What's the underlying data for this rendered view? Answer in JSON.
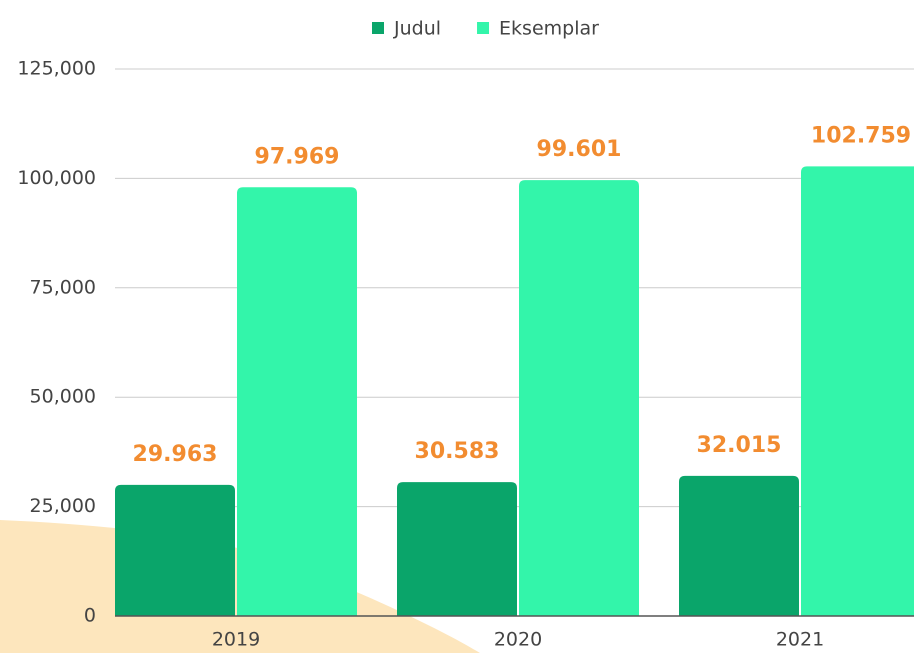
{
  "chart_data": {
    "type": "bar",
    "categories": [
      "2019",
      "2020",
      "2021"
    ],
    "series": [
      {
        "name": "Judul",
        "color": "#0aa56a",
        "values": [
          29963,
          30583,
          32015
        ],
        "value_labels": [
          "29.963",
          "30.583",
          "32.015"
        ]
      },
      {
        "name": "Eksemplar",
        "color": "#33f5aa",
        "values": [
          97969,
          99601,
          102759
        ],
        "value_labels": [
          "97.969",
          "99.601",
          "102.759"
        ]
      }
    ],
    "ylim": [
      0,
      125000
    ],
    "yticks": [
      0,
      {
        "value": 25000,
        "label": "25,000"
      },
      {
        "value": 50000,
        "label": "50,000"
      },
      {
        "value": 75000,
        "label": "75,000"
      },
      {
        "value": 100000,
        "label": "100,000"
      },
      {
        "value": 125000,
        "label": "125,000"
      }
    ],
    "grid": true,
    "legend": "top"
  }
}
